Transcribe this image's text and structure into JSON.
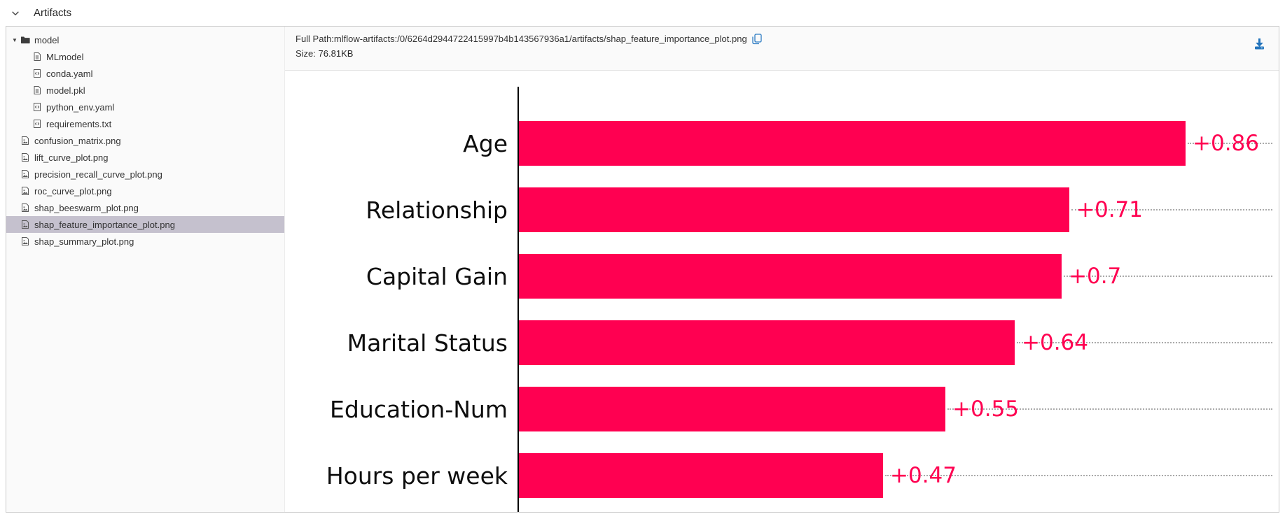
{
  "section": {
    "title": "Artifacts"
  },
  "sidebar": {
    "items": [
      {
        "label": "model",
        "icon": "folder",
        "indent": 6,
        "caret": true,
        "selected": false
      },
      {
        "label": "MLmodel",
        "icon": "file",
        "indent": 37,
        "caret": false,
        "selected": false
      },
      {
        "label": "conda.yaml",
        "icon": "code",
        "indent": 37,
        "caret": false,
        "selected": false
      },
      {
        "label": "model.pkl",
        "icon": "file",
        "indent": 37,
        "caret": false,
        "selected": false
      },
      {
        "label": "python_env.yaml",
        "icon": "code",
        "indent": 37,
        "caret": false,
        "selected": false
      },
      {
        "label": "requirements.txt",
        "icon": "code",
        "indent": 37,
        "caret": false,
        "selected": false
      },
      {
        "label": "confusion_matrix.png",
        "icon": "image",
        "indent": 20,
        "caret": false,
        "selected": false
      },
      {
        "label": "lift_curve_plot.png",
        "icon": "image",
        "indent": 20,
        "caret": false,
        "selected": false
      },
      {
        "label": "precision_recall_curve_plot.png",
        "icon": "image",
        "indent": 20,
        "caret": false,
        "selected": false
      },
      {
        "label": "roc_curve_plot.png",
        "icon": "image",
        "indent": 20,
        "caret": false,
        "selected": false
      },
      {
        "label": "shap_beeswarm_plot.png",
        "icon": "image",
        "indent": 20,
        "caret": false,
        "selected": false
      },
      {
        "label": "shap_feature_importance_plot.png",
        "icon": "image",
        "indent": 20,
        "caret": false,
        "selected": true
      },
      {
        "label": "shap_summary_plot.png",
        "icon": "image",
        "indent": 20,
        "caret": false,
        "selected": false
      }
    ]
  },
  "viewer": {
    "full_path_label": "Full Path:",
    "full_path": "mlflow-artifacts:/0/6264d2944722415997b4b143567936a1/artifacts/shap_feature_importance_plot.png",
    "size_label": "Size:",
    "size_value": "76.81KB"
  },
  "chart_data": {
    "type": "bar",
    "orientation": "horizontal",
    "title": "",
    "categories": [
      "Age",
      "Relationship",
      "Capital Gain",
      "Marital Status",
      "Education-Num",
      "Hours per week"
    ],
    "values": [
      0.86,
      0.71,
      0.7,
      0.64,
      0.55,
      0.47
    ],
    "value_labels": [
      "+0.86",
      "+0.71",
      "+0.7",
      "+0.64",
      "+0.55",
      "+0.47"
    ],
    "bar_color": "#ff0051",
    "label_color": "#ff0051",
    "xlim": [
      0,
      0.97
    ],
    "grid": "dotted leader lines to right edge",
    "legend": "none"
  },
  "colors": {
    "accent_blue": "#2374bc",
    "selected_row": "#c5c1ce",
    "panel_bg": "#fafafa"
  }
}
